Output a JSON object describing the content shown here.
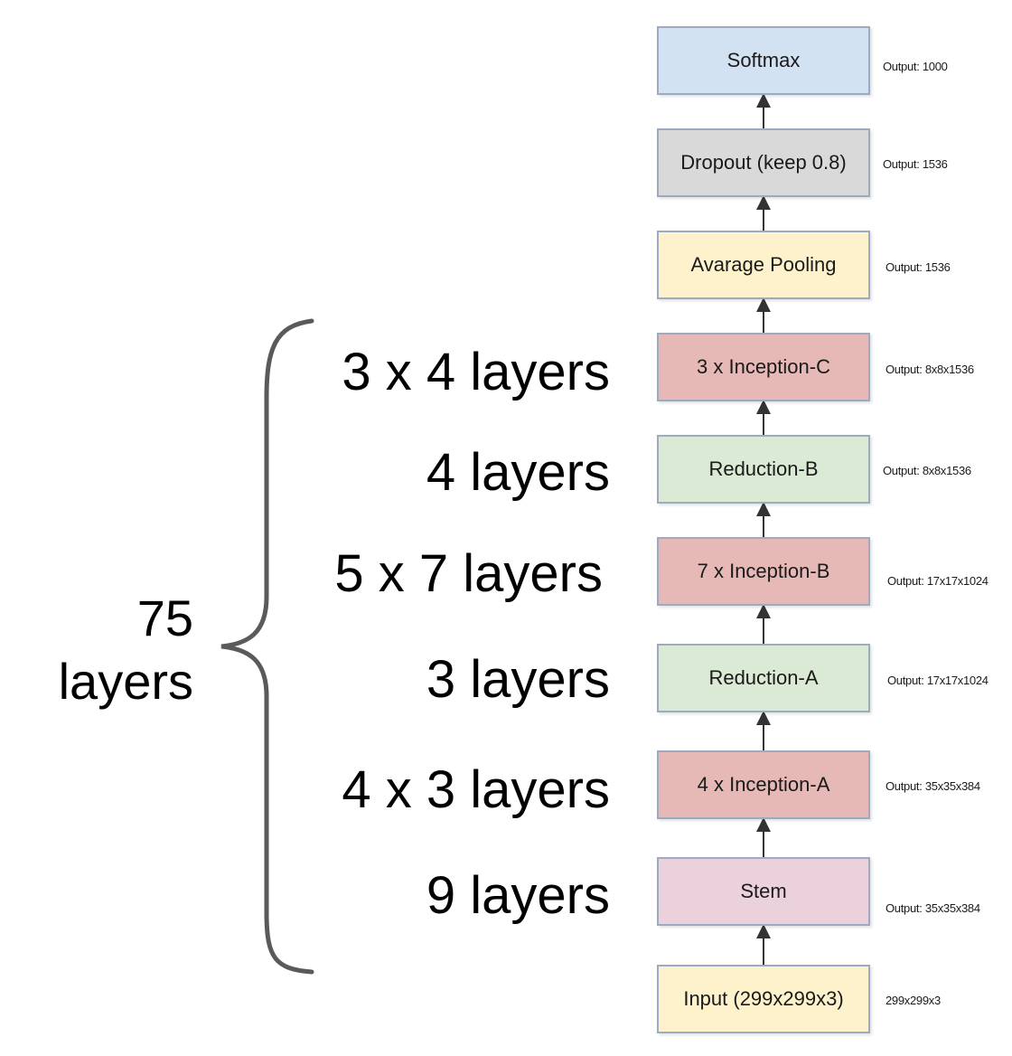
{
  "blocks": [
    {
      "label": "Softmax",
      "output": "Output: 1000",
      "color": "#d3e2f3"
    },
    {
      "label": "Dropout (keep 0.8)",
      "output": "Output: 1536",
      "color": "#d9d9d9"
    },
    {
      "label": "Avarage Pooling",
      "output": "Output: 1536",
      "color": "#fdf2cc"
    },
    {
      "label": "3 x Inception-C",
      "output": "Output: 8x8x1536",
      "color": "#e6b9b6"
    },
    {
      "label": "Reduction-B",
      "output": "Output: 8x8x1536",
      "color": "#dbead4"
    },
    {
      "label": "7 x Inception-B",
      "output": "Output: 17x17x1024",
      "color": "#e6b9b6"
    },
    {
      "label": "Reduction-A",
      "output": "Output: 17x17x1024",
      "color": "#dbead4"
    },
    {
      "label": "4 x Inception-A",
      "output": "Output: 35x35x384",
      "color": "#e6b9b6"
    },
    {
      "label": "Stem",
      "output": "Output: 35x35x384",
      "color": "#ead1db"
    },
    {
      "label": "Input (299x299x3)",
      "output": "299x299x3",
      "color": "#fdf2cc"
    }
  ],
  "layer_counts": [
    "3 x 4 layers",
    "4 layers",
    "5 x 7 layers",
    "3 layers",
    "4 x 3 layers",
    "9 layers"
  ],
  "total": {
    "line1": "75",
    "line2": "layers"
  },
  "colors": {
    "block_border": "#9dabc0",
    "arrow": "#333333",
    "brace": "#5a5a5a"
  }
}
